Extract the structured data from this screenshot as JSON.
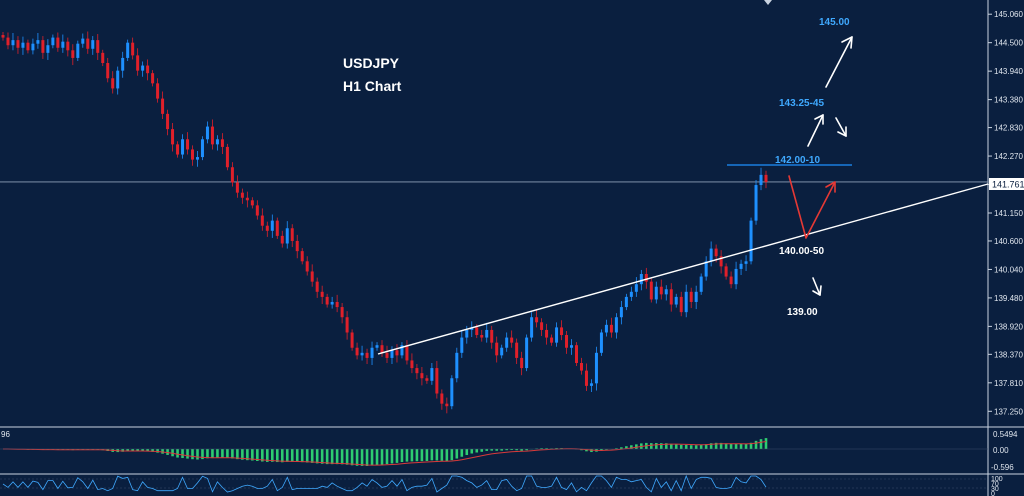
{
  "chart_data": {
    "type": "candlestick",
    "title": "USDJPY",
    "subtitle": "H1 Chart",
    "ylim": [
      137.0,
      145.3
    ],
    "y_ticks": [
      "145.060",
      "144.500",
      "143.940",
      "143.380",
      "142.830",
      "142.270",
      "141.710",
      "141.150",
      "140.600",
      "140.040",
      "139.480",
      "138.920",
      "138.370",
      "137.810",
      "137.250"
    ],
    "current_price": "141.761",
    "colors": {
      "background": "#0a1f3f",
      "up": "#1e90ff",
      "down": "#e0202a",
      "trendline": "#ffffff",
      "resistance": "#1e90ff",
      "blue_label": "#3fa9ff",
      "white_label": "#ffffff",
      "scenario_red": "#e53935",
      "osc_up": "#2ecc71"
    },
    "close_series": [
      144.6,
      144.45,
      144.55,
      144.4,
      144.5,
      144.35,
      144.48,
      144.55,
      144.3,
      144.45,
      144.6,
      144.4,
      144.52,
      144.35,
      144.2,
      144.48,
      144.58,
      144.38,
      144.55,
      144.3,
      144.1,
      143.8,
      143.6,
      143.95,
      144.2,
      144.5,
      144.25,
      143.95,
      144.05,
      143.9,
      143.7,
      143.4,
      143.1,
      142.8,
      142.5,
      142.3,
      142.6,
      142.4,
      142.2,
      142.25,
      142.6,
      142.85,
      142.5,
      142.6,
      142.45,
      142.05,
      141.75,
      141.55,
      141.45,
      141.4,
      141.3,
      141.1,
      140.9,
      140.8,
      141.0,
      140.7,
      140.55,
      140.85,
      140.6,
      140.4,
      140.2,
      140.0,
      139.8,
      139.6,
      139.5,
      139.35,
      139.4,
      139.3,
      139.1,
      138.8,
      138.5,
      138.35,
      138.4,
      138.3,
      138.5,
      138.55,
      138.4,
      138.3,
      138.45,
      138.35,
      138.55,
      138.25,
      138.1,
      138.0,
      137.9,
      137.85,
      138.1,
      137.6,
      137.4,
      137.35,
      137.9,
      138.4,
      138.7,
      138.85,
      138.9,
      138.75,
      138.7,
      138.85,
      138.6,
      138.35,
      138.5,
      138.7,
      138.6,
      138.3,
      138.1,
      138.7,
      139.1,
      139.0,
      138.85,
      138.7,
      138.6,
      138.9,
      138.75,
      138.5,
      138.55,
      138.2,
      138.05,
      137.75,
      137.8,
      138.4,
      138.8,
      138.95,
      138.8,
      139.1,
      139.3,
      139.5,
      139.6,
      139.75,
      139.95,
      139.8,
      139.45,
      139.7,
      139.55,
      139.65,
      139.35,
      139.5,
      139.2,
      139.6,
      139.4,
      139.6,
      139.9,
      140.2,
      140.45,
      140.3,
      140.1,
      139.9,
      139.75,
      140.05,
      140.15,
      140.2,
      141.0,
      141.7,
      141.9,
      141.76
    ]
  },
  "annotations": {
    "target_high": "145.00",
    "zone_mid": "143.25-45",
    "zone_resistance": "142.00-10",
    "level_pivot": "140.00-50",
    "target_low": "139.00"
  },
  "macd": {
    "upper_label": "0.5494",
    "zero_label": "0.00",
    "lower_label": "-0.596",
    "left_fragment": "96"
  },
  "rsi": {
    "labels": [
      "100",
      "70",
      "30",
      "0"
    ]
  }
}
